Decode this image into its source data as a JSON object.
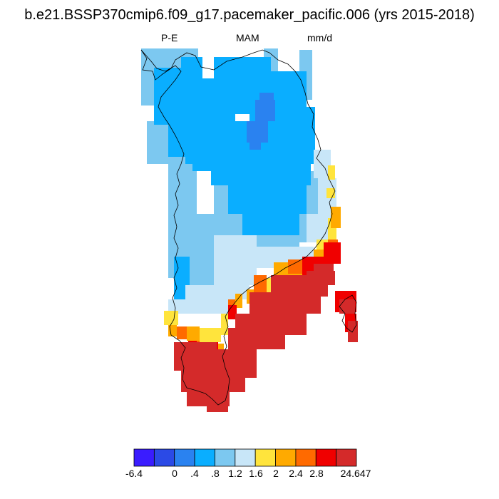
{
  "title": "b.e21.BSSP370cmip6.f09_g17.pacemaker_pacific.006 (yrs 2015-2018)",
  "subtitles": {
    "left": "P-E",
    "center": "MAM",
    "right": "mm/d"
  },
  "legend": {
    "colors": [
      "#3a1cff",
      "#2b4ae6",
      "#2a82f0",
      "#0aaeff",
      "#7cc8f0",
      "#c8e6f8",
      "#ffe43c",
      "#ffaa00",
      "#ff6a00",
      "#f00000",
      "#d42a2a"
    ],
    "labels": [
      "-6.4",
      "0",
      ".4",
      ".8",
      "1.2",
      "1.6",
      "2",
      "2.4",
      "2.8",
      "24.647"
    ]
  },
  "map_data": {
    "region": "Greenland",
    "variable": "P-E",
    "season": "MAM",
    "units": "mm/d"
  }
}
